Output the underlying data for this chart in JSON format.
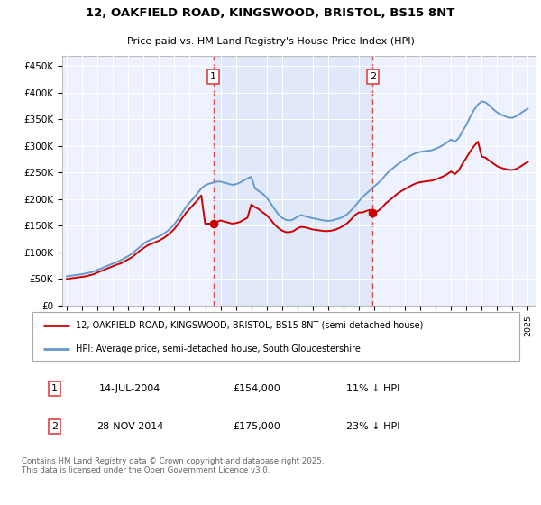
{
  "title1": "12, OAKFIELD ROAD, KINGSWOOD, BRISTOL, BS15 8NT",
  "title2": "Price paid vs. HM Land Registry's House Price Index (HPI)",
  "ylabel_ticks": [
    "£0",
    "£50K",
    "£100K",
    "£150K",
    "£200K",
    "£250K",
    "£300K",
    "£350K",
    "£400K",
    "£450K"
  ],
  "ytick_vals": [
    0,
    50000,
    100000,
    150000,
    200000,
    250000,
    300000,
    350000,
    400000,
    450000
  ],
  "ylim": [
    0,
    470000
  ],
  "xlim_start": 1994.7,
  "xlim_end": 2025.5,
  "legend_line1": "12, OAKFIELD ROAD, KINGSWOOD, BRISTOL, BS15 8NT (semi-detached house)",
  "legend_line2": "HPI: Average price, semi-detached house, South Gloucestershire",
  "sale1_label": "1",
  "sale1_date": "14-JUL-2004",
  "sale1_price": "£154,000",
  "sale1_pct": "11% ↓ HPI",
  "sale1_x": 2004.53,
  "sale1_y": 154000,
  "sale2_label": "2",
  "sale2_date": "28-NOV-2014",
  "sale2_price": "£175,000",
  "sale2_pct": "23% ↓ HPI",
  "sale2_x": 2014.9,
  "sale2_y": 175000,
  "footer": "Contains HM Land Registry data © Crown copyright and database right 2025.\nThis data is licensed under the Open Government Licence v3.0.",
  "line_color_red": "#cc0000",
  "line_color_blue": "#6699cc",
  "vline_color": "#dd4444",
  "background_color": "#ffffff",
  "plot_bg": "#eef2ff",
  "hpi_data_x": [
    1995.0,
    1995.25,
    1995.5,
    1995.75,
    1996.0,
    1996.25,
    1996.5,
    1996.75,
    1997.0,
    1997.25,
    1997.5,
    1997.75,
    1998.0,
    1998.25,
    1998.5,
    1998.75,
    1999.0,
    1999.25,
    1999.5,
    1999.75,
    2000.0,
    2000.25,
    2000.5,
    2000.75,
    2001.0,
    2001.25,
    2001.5,
    2001.75,
    2002.0,
    2002.25,
    2002.5,
    2002.75,
    2003.0,
    2003.25,
    2003.5,
    2003.75,
    2004.0,
    2004.25,
    2004.5,
    2004.75,
    2005.0,
    2005.25,
    2005.5,
    2005.75,
    2006.0,
    2006.25,
    2006.5,
    2006.75,
    2007.0,
    2007.25,
    2007.5,
    2007.75,
    2008.0,
    2008.25,
    2008.5,
    2008.75,
    2009.0,
    2009.25,
    2009.5,
    2009.75,
    2010.0,
    2010.25,
    2010.5,
    2010.75,
    2011.0,
    2011.25,
    2011.5,
    2011.75,
    2012.0,
    2012.25,
    2012.5,
    2012.75,
    2013.0,
    2013.25,
    2013.5,
    2013.75,
    2014.0,
    2014.25,
    2014.5,
    2014.75,
    2015.0,
    2015.25,
    2015.5,
    2015.75,
    2016.0,
    2016.25,
    2016.5,
    2016.75,
    2017.0,
    2017.25,
    2017.5,
    2017.75,
    2018.0,
    2018.25,
    2018.5,
    2018.75,
    2019.0,
    2019.25,
    2019.5,
    2019.75,
    2020.0,
    2020.25,
    2020.5,
    2020.75,
    2021.0,
    2021.25,
    2021.5,
    2021.75,
    2022.0,
    2022.25,
    2022.5,
    2022.75,
    2023.0,
    2023.25,
    2023.5,
    2023.75,
    2024.0,
    2024.25,
    2024.5,
    2024.75,
    2025.0
  ],
  "hpi_data_y": [
    55000,
    56000,
    57000,
    58000,
    59000,
    60500,
    62000,
    64000,
    67000,
    70000,
    73000,
    76000,
    79000,
    82000,
    85000,
    89000,
    93000,
    98000,
    104000,
    110000,
    116000,
    121000,
    124000,
    127000,
    130000,
    134000,
    139000,
    145000,
    153000,
    163000,
    174000,
    185000,
    194000,
    202000,
    211000,
    220000,
    226000,
    229000,
    231000,
    233000,
    233000,
    231000,
    229000,
    227000,
    228000,
    231000,
    235000,
    239000,
    242000,
    220000,
    215000,
    210000,
    203000,
    193000,
    182000,
    172000,
    165000,
    161000,
    160000,
    162000,
    167000,
    170000,
    168000,
    166000,
    164000,
    163000,
    161000,
    160000,
    159000,
    160000,
    162000,
    164000,
    167000,
    172000,
    179000,
    187000,
    196000,
    204000,
    211000,
    217000,
    224000,
    230000,
    237000,
    246000,
    253000,
    259000,
    265000,
    270000,
    275000,
    280000,
    284000,
    287000,
    289000,
    290000,
    291000,
    292000,
    295000,
    298000,
    302000,
    307000,
    312000,
    308000,
    315000,
    328000,
    340000,
    355000,
    368000,
    378000,
    384000,
    382000,
    376000,
    369000,
    363000,
    359000,
    356000,
    353000,
    353000,
    356000,
    361000,
    366000,
    370000
  ],
  "red_data_x": [
    1995.0,
    1995.25,
    1995.5,
    1995.75,
    1996.0,
    1996.25,
    1996.5,
    1996.75,
    1997.0,
    1997.25,
    1997.5,
    1997.75,
    1998.0,
    1998.25,
    1998.5,
    1998.75,
    1999.0,
    1999.25,
    1999.5,
    1999.75,
    2000.0,
    2000.25,
    2000.5,
    2000.75,
    2001.0,
    2001.25,
    2001.5,
    2001.75,
    2002.0,
    2002.25,
    2002.5,
    2002.75,
    2003.0,
    2003.25,
    2003.5,
    2003.75,
    2004.0,
    2004.25,
    2004.5,
    2004.75,
    2005.0,
    2005.25,
    2005.5,
    2005.75,
    2006.0,
    2006.25,
    2006.5,
    2006.75,
    2007.0,
    2007.25,
    2007.5,
    2007.75,
    2008.0,
    2008.25,
    2008.5,
    2008.75,
    2009.0,
    2009.25,
    2009.5,
    2009.75,
    2010.0,
    2010.25,
    2010.5,
    2010.75,
    2011.0,
    2011.25,
    2011.5,
    2011.75,
    2012.0,
    2012.25,
    2012.5,
    2012.75,
    2013.0,
    2013.25,
    2013.5,
    2013.75,
    2014.0,
    2014.25,
    2014.5,
    2014.75,
    2015.0,
    2015.25,
    2015.5,
    2015.75,
    2016.0,
    2016.25,
    2016.5,
    2016.75,
    2017.0,
    2017.25,
    2017.5,
    2017.75,
    2018.0,
    2018.25,
    2018.5,
    2018.75,
    2019.0,
    2019.25,
    2019.5,
    2019.75,
    2020.0,
    2020.25,
    2020.5,
    2020.75,
    2021.0,
    2021.25,
    2021.5,
    2021.75,
    2022.0,
    2022.25,
    2022.5,
    2022.75,
    2023.0,
    2023.25,
    2023.5,
    2023.75,
    2024.0,
    2024.25,
    2024.5,
    2024.75,
    2025.0
  ],
  "red_data_y": [
    50000,
    51000,
    52000,
    53000,
    54000,
    55000,
    57000,
    59000,
    62000,
    65000,
    68000,
    71000,
    74000,
    77000,
    79000,
    83000,
    87000,
    91000,
    97000,
    103000,
    108000,
    113000,
    116000,
    119000,
    122000,
    126000,
    131000,
    137000,
    144000,
    154000,
    164000,
    174000,
    182000,
    190000,
    198000,
    207000,
    154000,
    154000,
    154000,
    157000,
    160000,
    158000,
    156000,
    154000,
    155000,
    157000,
    161000,
    165000,
    190000,
    185000,
    181000,
    175000,
    170000,
    162000,
    153000,
    146000,
    141000,
    138000,
    138000,
    140000,
    145000,
    148000,
    147000,
    145000,
    143000,
    142000,
    141000,
    140000,
    140000,
    141000,
    143000,
    146000,
    150000,
    155000,
    162000,
    170000,
    175000,
    175000,
    178000,
    180000,
    175000,
    178000,
    184000,
    192000,
    198000,
    204000,
    210000,
    215000,
    219000,
    223000,
    227000,
    230000,
    232000,
    233000,
    234000,
    235000,
    237000,
    240000,
    243000,
    247000,
    252000,
    247000,
    254000,
    267000,
    278000,
    290000,
    300000,
    308000,
    280000,
    278000,
    272000,
    267000,
    262000,
    259000,
    257000,
    255000,
    255000,
    257000,
    261000,
    266000,
    270000
  ]
}
